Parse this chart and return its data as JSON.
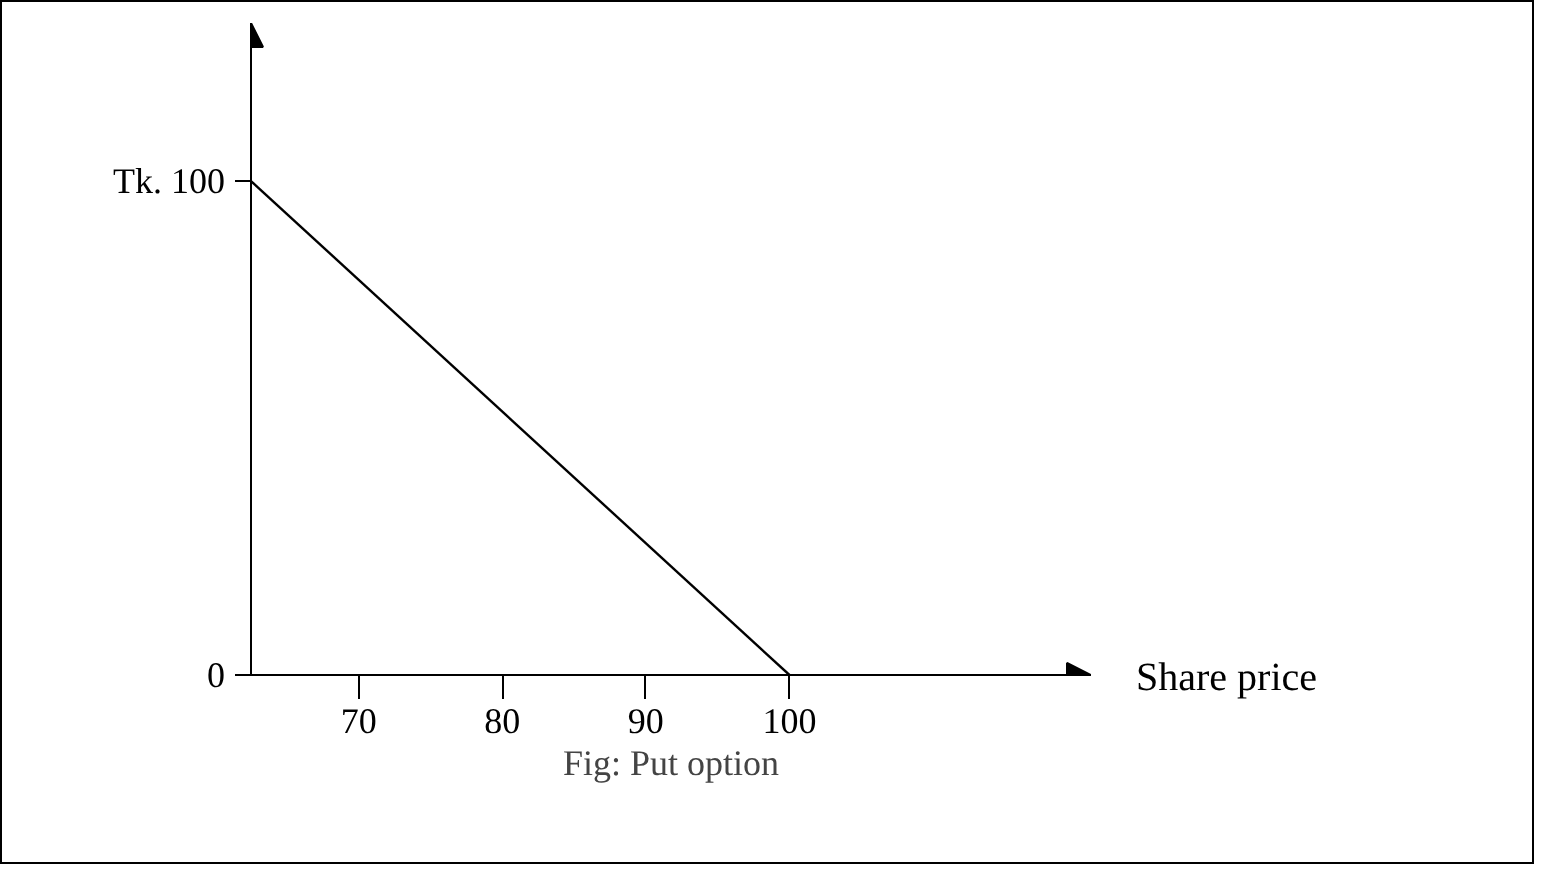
{
  "chart_data": {
    "type": "line",
    "xlabel": "Share price",
    "annotations": [
      "Fig: Put option"
    ],
    "x": [
      62.5,
      100
    ],
    "series": [
      {
        "color": "#000000",
        "values": [
          100,
          0
        ]
      }
    ],
    "xlim": [
      62.5,
      121
    ],
    "ylim": [
      0,
      132
    ],
    "xticks": [
      70,
      80,
      90,
      100
    ],
    "yticks": [
      {
        "value": 0,
        "label": "0"
      },
      {
        "value": 100,
        "label": "Tk. 100"
      }
    ],
    "grid": false,
    "marker": "none",
    "line_style": "solid"
  }
}
